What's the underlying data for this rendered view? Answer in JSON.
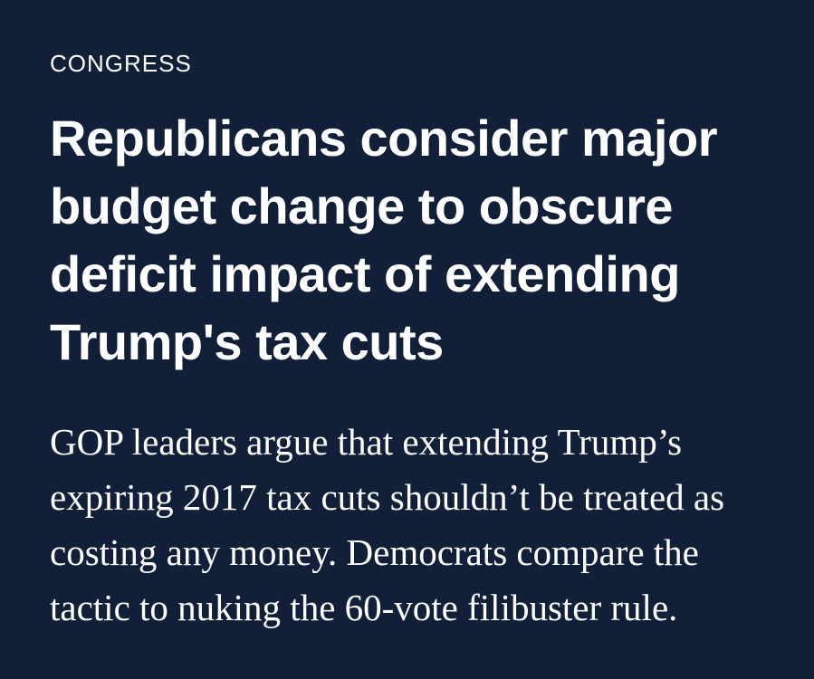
{
  "page": {
    "background_color": "#111f38",
    "headline_color": "#ffffff",
    "dek_color": "#ffffff",
    "eyebrow_color": "#ffffff"
  },
  "article": {
    "section": "CONGRESS",
    "headline": "Republicans consider major budget change to obscure deficit impact of extending Trump's tax cuts",
    "headline_lines": [
      "Republicans consider major",
      "budget change to obscure",
      "deficit impact of extending",
      "Trump's tax cuts"
    ],
    "dek": "GOP leaders argue that extending Trump’s expiring 2017 tax cuts shouldn’t be treated as costing any money. Democrats compare the tactic to nuking the 60-vote filibuster rule.",
    "dek_lines": [
      "GOP leaders argue that extending Trump’s",
      "expiring 2017 tax cuts shouldn’t be treated as",
      "costing any money. Democrats compare the",
      "tactic to nuking the 60-vote filibuster rule."
    ]
  }
}
